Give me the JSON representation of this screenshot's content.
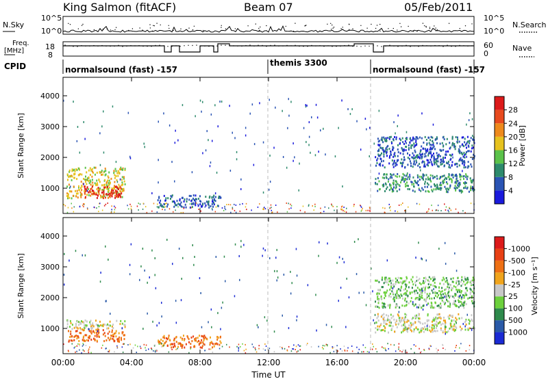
{
  "header": {
    "station": "King Salmon (fitACF)",
    "beam": "Beam 07",
    "date": "05/Feb/2011"
  },
  "side_labels": {
    "nsky": "N.Sky",
    "nsearch": "N.Search",
    "freq_line1": "Freq.",
    "freq_line2": "[MHz]",
    "nave": "Nave",
    "cpid": "CPID"
  },
  "top_axes": {
    "noise_left_ticks": [
      "10^5",
      "10^0"
    ],
    "noise_right_ticks": [
      "10^5",
      "10^0"
    ],
    "freq_left_ticks": [
      "18",
      "8"
    ],
    "nave_right_ticks": [
      "60",
      "0"
    ]
  },
  "cpid_segments": [
    {
      "label": "normalsound (fast) -157",
      "start_h": 0,
      "end_h": 12
    },
    {
      "label": "themis 3300",
      "start_h": 12,
      "end_h": 18
    },
    {
      "label": "normalsound (fast) -157",
      "start_h": 18,
      "end_h": 24
    }
  ],
  "chart_data": [
    {
      "type": "heatmap",
      "name_panel": "power",
      "ylabel": "Slant Range [km]",
      "xlabel": "Time UT",
      "xlim_hours": [
        0,
        24
      ],
      "ylim_km": [
        180,
        4600
      ],
      "y_ticks": [
        "1000",
        "2000",
        "3000",
        "4000"
      ],
      "x_ticks": [
        "00:00",
        "04:00",
        "08:00",
        "12:00",
        "16:00",
        "20:00",
        "00:00"
      ],
      "colorbar": {
        "label": "Power [dB]",
        "tick_labels": [
          "4",
          "8",
          "12",
          "16",
          "20",
          "24",
          "28"
        ],
        "colors": [
          "#1a1adc",
          "#2a54b4",
          "#2d8a6c",
          "#5bc24a",
          "#e6c21e",
          "#ee8a1c",
          "#e84a1e",
          "#dc1a1a"
        ]
      },
      "regions": [
        {
          "t0": 0.2,
          "t1": 3.6,
          "r0": 700,
          "r1": 1700,
          "level": 4
        },
        {
          "t0": 1.2,
          "t1": 3.4,
          "r0": 700,
          "r1": 1100,
          "level": 7
        },
        {
          "t0": 5.5,
          "t1": 9.2,
          "r0": 400,
          "r1": 800,
          "level": 1
        },
        {
          "t0": 18.2,
          "t1": 24.0,
          "r0": 900,
          "r1": 1500,
          "level": 2
        },
        {
          "t0": 18.2,
          "t1": 24.0,
          "r0": 1700,
          "r1": 2700,
          "level": 1
        }
      ]
    },
    {
      "type": "heatmap",
      "name_panel": "velocity",
      "ylabel": "Slant Range [km]",
      "xlabel": "Time UT",
      "xlim_hours": [
        0,
        24
      ],
      "ylim_km": [
        180,
        4600
      ],
      "y_ticks": [
        "1000",
        "2000",
        "3000",
        "4000"
      ],
      "x_ticks": [
        "00:00",
        "04:00",
        "08:00",
        "12:00",
        "16:00",
        "20:00",
        "00:00"
      ],
      "colorbar": {
        "label": "Velocity [m s⁻¹]",
        "tick_labels": [
          "1000",
          "500",
          "100",
          "25",
          "-25",
          "-100",
          "-500",
          "-1000"
        ],
        "colors": [
          "#1a2ad4",
          "#2a5aa8",
          "#2e8a4c",
          "#6cd03c",
          "#c8c8c8",
          "#f0a41c",
          "#ee7014",
          "#e84014",
          "#dc1a1a"
        ]
      },
      "regions": [
        {
          "t0": 0.2,
          "t1": 3.6,
          "r0": 1000,
          "r1": 1300,
          "level": 4
        },
        {
          "t0": 0.2,
          "t1": 3.6,
          "r0": 600,
          "r1": 1000,
          "level": 6
        },
        {
          "t0": 5.5,
          "t1": 9.2,
          "r0": 400,
          "r1": 800,
          "level": 6
        },
        {
          "t0": 18.2,
          "t1": 24.0,
          "r0": 900,
          "r1": 1500,
          "level": 4
        },
        {
          "t0": 18.2,
          "t1": 24.0,
          "r0": 1700,
          "r1": 2700,
          "level": 3
        }
      ]
    }
  ]
}
